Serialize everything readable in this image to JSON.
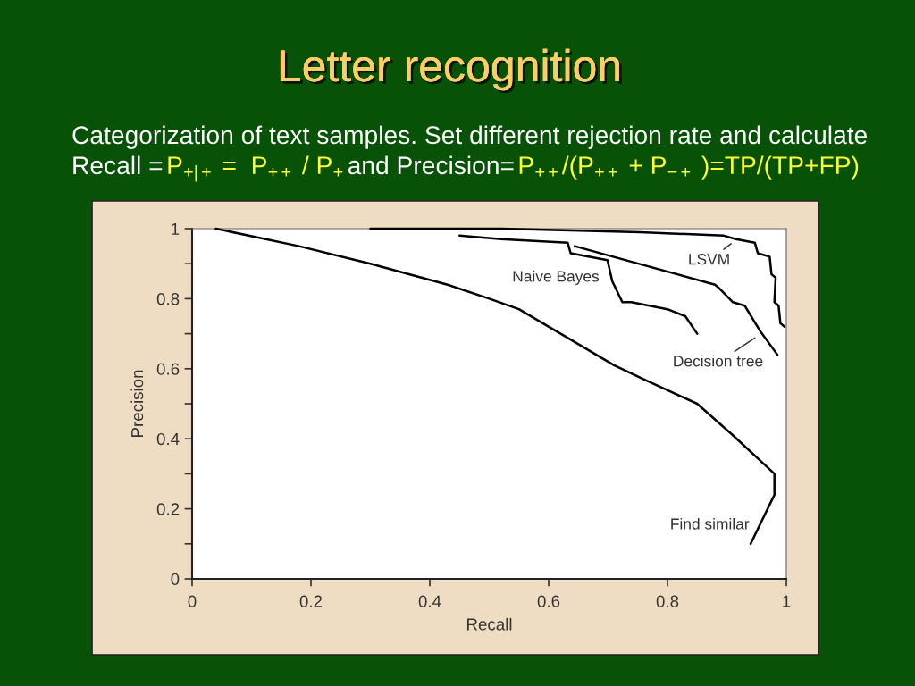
{
  "chart_data": {
    "type": "line",
    "title": "Letter recognition",
    "subtitle": "Categorization of text samples. Set different rejection rate and calculate",
    "annotations": [
      "Recall =",
      "P$_{+|+}$ =  P$_{++}$ / P$_{+}$",
      "and Precision=",
      "P$_{++}$/(P$_{++}$ + P$_{−+}$ )=TP/(TP+FP)"
    ],
    "xlabel": "Recall",
    "ylabel": "Precision",
    "xlim": [
      0,
      1
    ],
    "ylim": [
      0,
      1
    ],
    "xticks": [
      0,
      0.2,
      0.4,
      0.6,
      0.8,
      1
    ],
    "yticks": [
      0,
      {
        "value": 0.1,
        "label": null
      },
      0.2,
      {
        "value": 0.3,
        "label": null
      },
      0.4,
      {
        "value": 0.5,
        "label": null
      },
      0.6,
      {
        "value": 0.7,
        "label": null
      },
      0.8,
      {
        "value": 0.9,
        "label": null
      },
      1
    ],
    "series": [
      {
        "name": "LSVM",
        "color": "#000000",
        "x": [
          0.3,
          0.52,
          0.754,
          0.895,
          0.915,
          0.947,
          0.952,
          0.972,
          0.975,
          0.982,
          0.98,
          0.987,
          0.99,
          0.997
        ],
        "values": [
          1.0,
          1.0,
          0.99,
          0.98,
          0.97,
          0.96,
          0.93,
          0.92,
          0.87,
          0.86,
          0.79,
          0.78,
          0.73,
          0.72
        ]
      },
      {
        "name": "Naive Bayes",
        "color": "#000000",
        "x": [
          0.45,
          0.52,
          0.632,
          0.637,
          0.699,
          0.707,
          0.724,
          0.739,
          0.8,
          0.83,
          0.85
        ],
        "values": [
          0.98,
          0.97,
          0.96,
          0.93,
          0.91,
          0.85,
          0.79,
          0.79,
          0.77,
          0.75,
          0.7
        ]
      },
      {
        "name": "Decision tree",
        "color": "#000000",
        "x": [
          0.644,
          0.88,
          0.887,
          0.91,
          0.93,
          0.955,
          0.985
        ],
        "values": [
          0.95,
          0.84,
          0.83,
          0.79,
          0.78,
          0.71,
          0.64
        ]
      },
      {
        "name": "Find similar",
        "color": "#000000",
        "x": [
          0.04,
          0.18,
          0.3,
          0.43,
          0.5,
          0.55,
          0.61,
          0.64,
          0.71,
          0.76,
          0.85,
          0.91,
          0.98,
          0.98,
          0.94
        ],
        "values": [
          1.0,
          0.95,
          0.9,
          0.84,
          0.8,
          0.77,
          0.71,
          0.68,
          0.61,
          0.57,
          0.5,
          0.41,
          0.3,
          0.24,
          0.1
        ]
      }
    ]
  }
}
